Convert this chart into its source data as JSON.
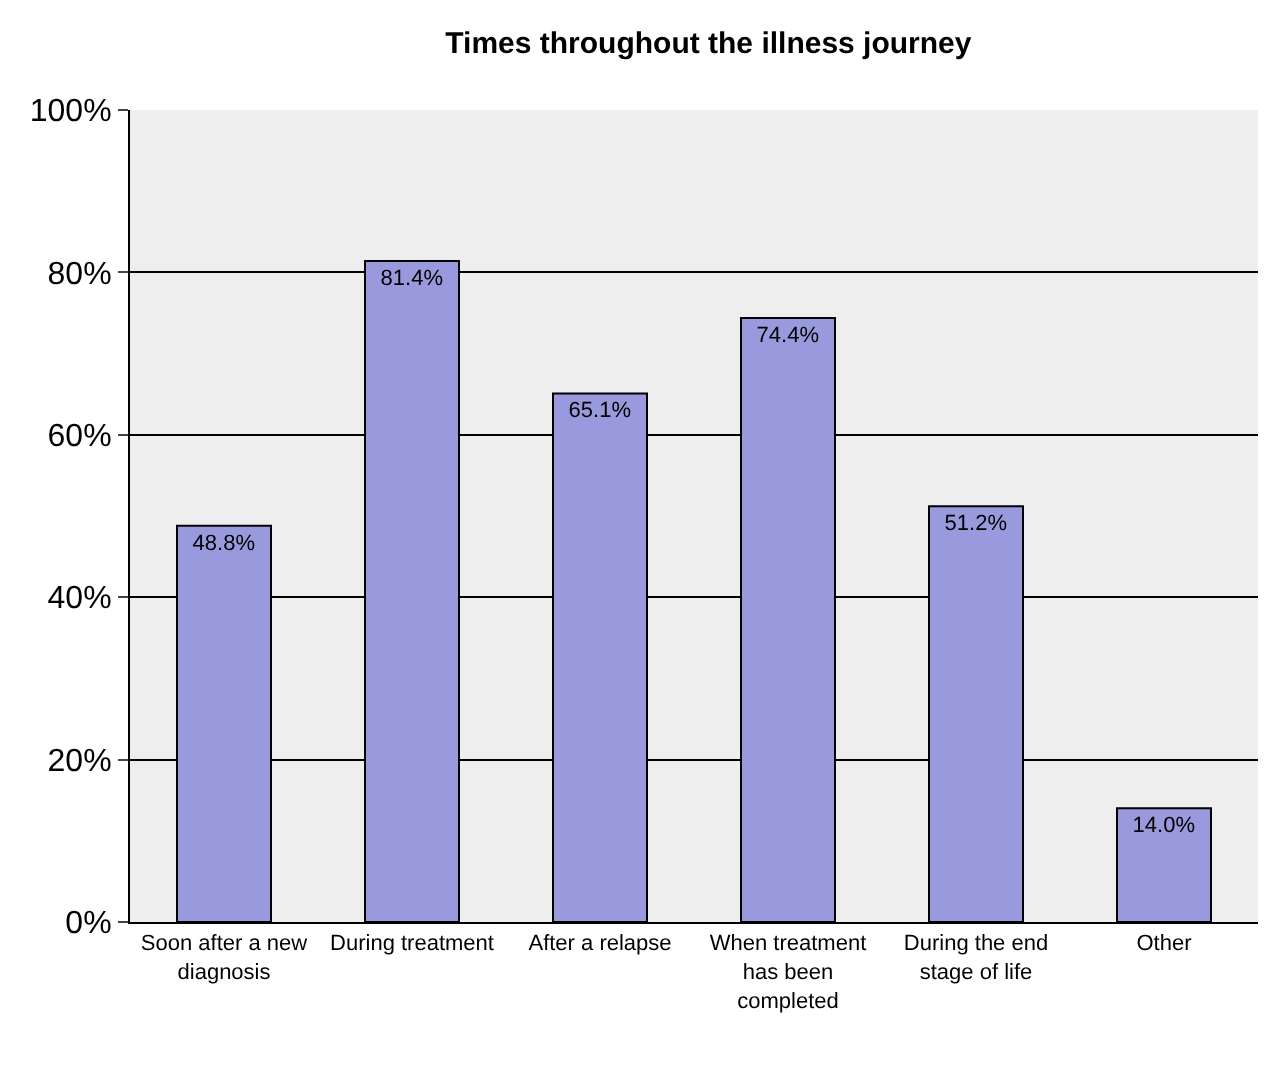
{
  "chart_data": {
    "type": "bar",
    "title": "Times throughout the illness journey",
    "categories": [
      "Soon after a new diagnosis",
      "During treatment",
      "After a relapse",
      "When treatment has been completed",
      "During the end stage of life",
      "Other"
    ],
    "values": [
      48.8,
      81.4,
      65.1,
      74.4,
      51.2,
      14.0
    ],
    "value_labels": [
      "48.8%",
      "81.4%",
      "65.1%",
      "74.4%",
      "51.2%",
      "14.0%"
    ],
    "color": "#9999dd",
    "ylim": [
      0,
      100
    ],
    "yticks": [
      {
        "value": 0,
        "label": "0%"
      },
      {
        "value": 20,
        "label": "20%"
      },
      {
        "value": 40,
        "label": "40%"
      },
      {
        "value": 60,
        "label": "60%"
      },
      {
        "value": 80,
        "label": "80%"
      },
      {
        "value": 100,
        "label": "100%"
      }
    ],
    "grid": "y"
  }
}
